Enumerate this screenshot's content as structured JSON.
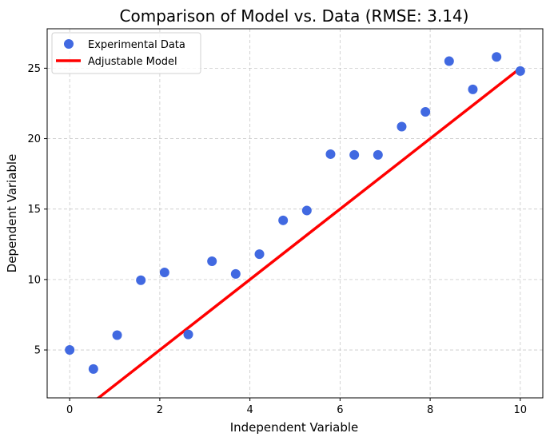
{
  "chart_data": {
    "type": "scatter",
    "title": "Comparison of Model vs. Data (RMSE: 3.14)",
    "xlabel": "Independent Variable",
    "ylabel": "Dependent Variable",
    "xlim": [
      -0.5,
      10.5
    ],
    "ylim": [
      1.6,
      27.8
    ],
    "xticks": [
      0,
      2,
      4,
      6,
      8,
      10
    ],
    "yticks": [
      5,
      10,
      15,
      20,
      25
    ],
    "grid": true,
    "legend_position": "top-left",
    "series": [
      {
        "name": "Experimental Data",
        "kind": "scatter",
        "color": "#4169E1",
        "x": [
          0.0,
          0.526,
          1.053,
          1.579,
          2.105,
          2.632,
          3.158,
          3.684,
          4.211,
          4.737,
          5.263,
          5.789,
          6.316,
          6.842,
          7.368,
          7.895,
          8.421,
          8.947,
          9.474,
          10.0
        ],
        "y": [
          5.0,
          3.65,
          6.05,
          9.95,
          10.5,
          6.1,
          11.3,
          10.4,
          11.8,
          14.2,
          14.9,
          18.9,
          18.85,
          18.85,
          20.85,
          21.9,
          25.5,
          23.5,
          25.8,
          24.8
        ]
      },
      {
        "name": "Adjustable Model",
        "kind": "line",
        "color": "#FF0000",
        "x": [
          0.0,
          10.0
        ],
        "y": [
          0.0,
          25.0
        ]
      }
    ]
  }
}
